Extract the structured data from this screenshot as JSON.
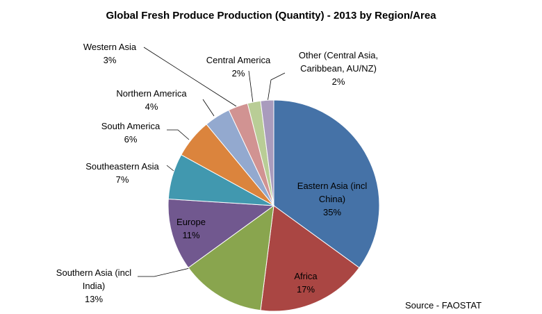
{
  "chart_data": {
    "type": "pie",
    "title": "Global Fresh Produce Production (Quantity) - 2013 by Region/Area",
    "categories": [
      "Eastern Asia (incl China)",
      "Africa",
      "Southern Asia (incl India)",
      "Europe",
      "Southeastern Asia",
      "South America",
      "Northern America",
      "Western Asia",
      "Central America",
      "Other (Central Asia, Caribbean, AU/NZ)"
    ],
    "values": [
      35,
      17,
      13,
      11,
      7,
      6,
      4,
      3,
      2,
      2
    ],
    "value_labels": [
      "35%",
      "17%",
      "13%",
      "11%",
      "7%",
      "6%",
      "4%",
      "3%",
      "2%",
      "2%"
    ],
    "colors": [
      "#4572a7",
      "#aa4643",
      "#89a54e",
      "#71588f",
      "#4198af",
      "#db843d",
      "#93a9cf",
      "#d19392",
      "#b9cd96",
      "#a99bbd"
    ],
    "source": "Source - FAOSTAT"
  }
}
